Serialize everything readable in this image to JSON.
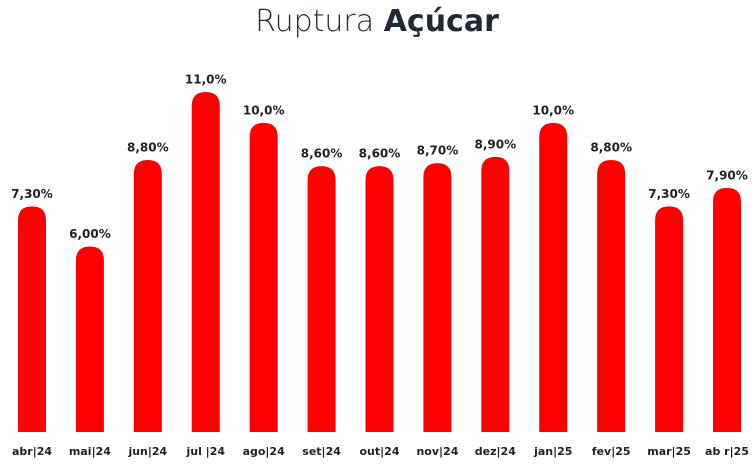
{
  "chart_data": {
    "type": "bar",
    "title": {
      "light": "Ruptura",
      "bold": "Açúcar"
    },
    "categories": [
      "abr|24",
      "mai|24",
      "jun|24",
      "jul |24",
      "ago|24",
      "set|24",
      "out|24",
      "nov|24",
      "dez|24",
      "jan|25",
      "fev|25",
      "mar|25",
      "ab r|25"
    ],
    "values": [
      7.3,
      6.0,
      8.8,
      11.0,
      10.0,
      8.6,
      8.6,
      8.7,
      8.9,
      10.0,
      8.8,
      7.3,
      7.9
    ],
    "value_labels": [
      "7,30%",
      "6,00%",
      "8,80%",
      "11,0%",
      "10,0%",
      "8,60%",
      "8,60%",
      "8,70%",
      "8,90%",
      "10,0%",
      "8,80%",
      "7,30%",
      "7,90%"
    ],
    "color": "#ff0000",
    "ylim": [
      0,
      11
    ]
  }
}
